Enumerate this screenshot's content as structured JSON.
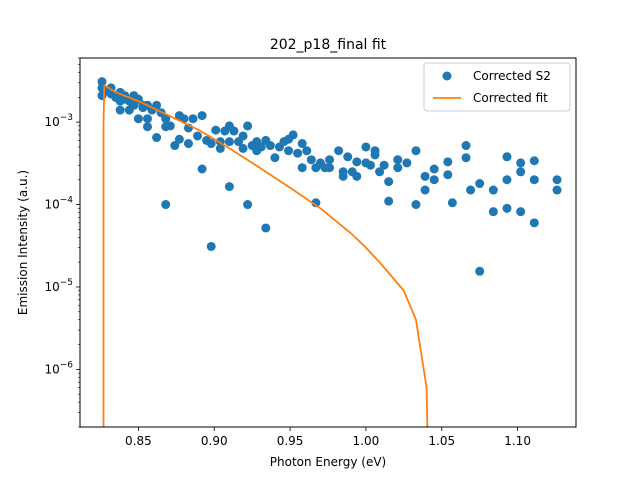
{
  "chart_data": {
    "type": "scatter",
    "title": "202_p18_final fit",
    "xlabel": "Photon Energy (eV)",
    "ylabel": "Emission Intensity (a.u.)",
    "xlim": [
      0.8115,
      1.1385
    ],
    "ylim": [
      2e-07,
      0.006
    ],
    "yscale": "log",
    "xticks": [
      0.85,
      0.9,
      0.95,
      1.0,
      1.05,
      1.1
    ],
    "xtick_labels": [
      "0.85",
      "0.90",
      "0.95",
      "1.00",
      "1.05",
      "1.10"
    ],
    "yticks": [
      {
        "value": 1e-06,
        "mant": "10",
        "exp": "−6"
      },
      {
        "value": 1e-05,
        "mant": "10",
        "exp": "−5"
      },
      {
        "value": 0.0001,
        "mant": "10",
        "exp": "−4"
      },
      {
        "value": 0.001,
        "mant": "10",
        "exp": "−3"
      }
    ],
    "grid": false,
    "legend_position": "top-right",
    "series": [
      {
        "name": "Corrected S2",
        "kind": "scatter",
        "color": "#1f77b4",
        "points": [
          [
            0.826,
            0.0031
          ],
          [
            0.826,
            0.0026
          ],
          [
            0.826,
            0.0021
          ],
          [
            0.829,
            0.0024
          ],
          [
            0.832,
            0.0026
          ],
          [
            0.832,
            0.0022
          ],
          [
            0.835,
            0.002
          ],
          [
            0.838,
            0.0023
          ],
          [
            0.838,
            0.0018
          ],
          [
            0.838,
            0.0014
          ],
          [
            0.841,
            0.0021
          ],
          [
            0.841,
            0.0019
          ],
          [
            0.844,
            0.0018
          ],
          [
            0.844,
            0.0014
          ],
          [
            0.847,
            0.0016
          ],
          [
            0.847,
            0.0021
          ],
          [
            0.85,
            0.0019
          ],
          [
            0.85,
            0.0011
          ],
          [
            0.853,
            0.0016
          ],
          [
            0.853,
            0.0015
          ],
          [
            0.856,
            0.0016
          ],
          [
            0.856,
            0.00088
          ],
          [
            0.856,
            0.0011
          ],
          [
            0.859,
            0.0014
          ],
          [
            0.862,
            0.0016
          ],
          [
            0.862,
            0.00065
          ],
          [
            0.865,
            0.0013
          ],
          [
            0.868,
            0.0011
          ],
          [
            0.868,
            0.00088
          ],
          [
            0.868,
            0.0001
          ],
          [
            0.871,
            0.0009
          ],
          [
            0.874,
            0.00052
          ],
          [
            0.877,
            0.0012
          ],
          [
            0.877,
            0.00062
          ],
          [
            0.88,
            0.0011
          ],
          [
            0.883,
            0.00085
          ],
          [
            0.883,
            0.00055
          ],
          [
            0.886,
            0.0011
          ],
          [
            0.889,
            0.00068
          ],
          [
            0.892,
            0.0012
          ],
          [
            0.892,
            0.00027
          ],
          [
            0.895,
            0.0006
          ],
          [
            0.898,
            0.00055
          ],
          [
            0.898,
            3.1e-05
          ],
          [
            0.901,
            0.0008
          ],
          [
            0.904,
            0.00058
          ],
          [
            0.904,
            0.00048
          ],
          [
            0.907,
            0.00078
          ],
          [
            0.91,
            0.0009
          ],
          [
            0.91,
            0.00058
          ],
          [
            0.91,
            0.000165
          ],
          [
            0.913,
            0.00078
          ],
          [
            0.916,
            0.00058
          ],
          [
            0.919,
            0.00068
          ],
          [
            0.919,
            0.00048
          ],
          [
            0.922,
            0.0009
          ],
          [
            0.922,
            0.0001
          ],
          [
            0.925,
            0.00052
          ],
          [
            0.928,
            0.00058
          ],
          [
            0.928,
            0.00045
          ],
          [
            0.931,
            0.0005
          ],
          [
            0.934,
            0.0006
          ],
          [
            0.934,
            5.2e-05
          ],
          [
            0.937,
            0.00052
          ],
          [
            0.94,
            0.00037
          ],
          [
            0.943,
            0.0005
          ],
          [
            0.946,
            0.00058
          ],
          [
            0.949,
            0.00062
          ],
          [
            0.949,
            0.00045
          ],
          [
            0.952,
            0.0007
          ],
          [
            0.955,
            0.00042
          ],
          [
            0.958,
            0.00055
          ],
          [
            0.958,
            0.00028
          ],
          [
            0.961,
            0.00045
          ],
          [
            0.964,
            0.00035
          ],
          [
            0.967,
            0.00028
          ],
          [
            0.967,
            0.000105
          ],
          [
            0.97,
            0.00032
          ],
          [
            0.973,
            0.00028
          ],
          [
            0.976,
            0.00035
          ],
          [
            0.976,
            0.00028
          ],
          [
            0.982,
            0.00045
          ],
          [
            0.985,
            0.00025
          ],
          [
            0.985,
            0.00022
          ],
          [
            0.988,
            0.00038
          ],
          [
            0.991,
            0.00025
          ],
          [
            0.994,
            0.00022
          ],
          [
            0.994,
            0.00033
          ],
          [
            1.0,
            0.0005
          ],
          [
            1.0,
            0.00032
          ],
          [
            1.003,
            0.0003
          ],
          [
            1.006,
            0.00045
          ],
          [
            1.006,
            0.0004
          ],
          [
            1.009,
            0.00025
          ],
          [
            1.012,
            0.0003
          ],
          [
            1.015,
            0.00019
          ],
          [
            1.015,
            0.00011
          ],
          [
            1.021,
            0.00035
          ],
          [
            1.021,
            0.00028
          ],
          [
            1.027,
            0.00032
          ],
          [
            1.033,
            0.00045
          ],
          [
            1.033,
            0.0001
          ],
          [
            1.039,
            0.00022
          ],
          [
            1.039,
            0.00015
          ],
          [
            1.045,
            0.00027
          ],
          [
            1.045,
            0.0002
          ],
          [
            1.054,
            0.00033
          ],
          [
            1.054,
            0.00023
          ],
          [
            1.057,
            0.000105
          ],
          [
            1.066,
            0.00052
          ],
          [
            1.066,
            0.00037
          ],
          [
            1.069,
            0.00015
          ],
          [
            1.075,
            0.00018
          ],
          [
            1.075,
            1.55e-05
          ],
          [
            1.084,
            0.00015
          ],
          [
            1.084,
            8.2e-05
          ],
          [
            1.093,
            0.00038
          ],
          [
            1.093,
            0.0002
          ],
          [
            1.093,
            9e-05
          ],
          [
            1.102,
            0.00032
          ],
          [
            1.102,
            0.00025
          ],
          [
            1.102,
            8.2e-05
          ],
          [
            1.111,
            0.00034
          ],
          [
            1.111,
            0.0002
          ],
          [
            1.111,
            6e-05
          ],
          [
            1.126,
            0.0002
          ],
          [
            1.126,
            0.00015
          ]
        ]
      },
      {
        "name": "Corrected fit",
        "kind": "line",
        "color": "#ff7f0e",
        "points": [
          [
            0.827,
            2e-07
          ],
          [
            0.827,
            0.0009
          ],
          [
            0.8275,
            0.0028
          ],
          [
            0.835,
            0.0023
          ],
          [
            0.85,
            0.0018
          ],
          [
            0.87,
            0.0012
          ],
          [
            0.89,
            0.0008
          ],
          [
            0.91,
            0.00048
          ],
          [
            0.93,
            0.00028
          ],
          [
            0.95,
            0.00016
          ],
          [
            0.97,
            9e-05
          ],
          [
            0.99,
            4.5e-05
          ],
          [
            1.0,
            3e-05
          ],
          [
            1.01,
            1.9e-05
          ],
          [
            1.025,
            9e-06
          ],
          [
            1.033,
            4e-06
          ],
          [
            1.04,
            6e-07
          ],
          [
            1.0405,
            2e-07
          ]
        ]
      }
    ]
  }
}
